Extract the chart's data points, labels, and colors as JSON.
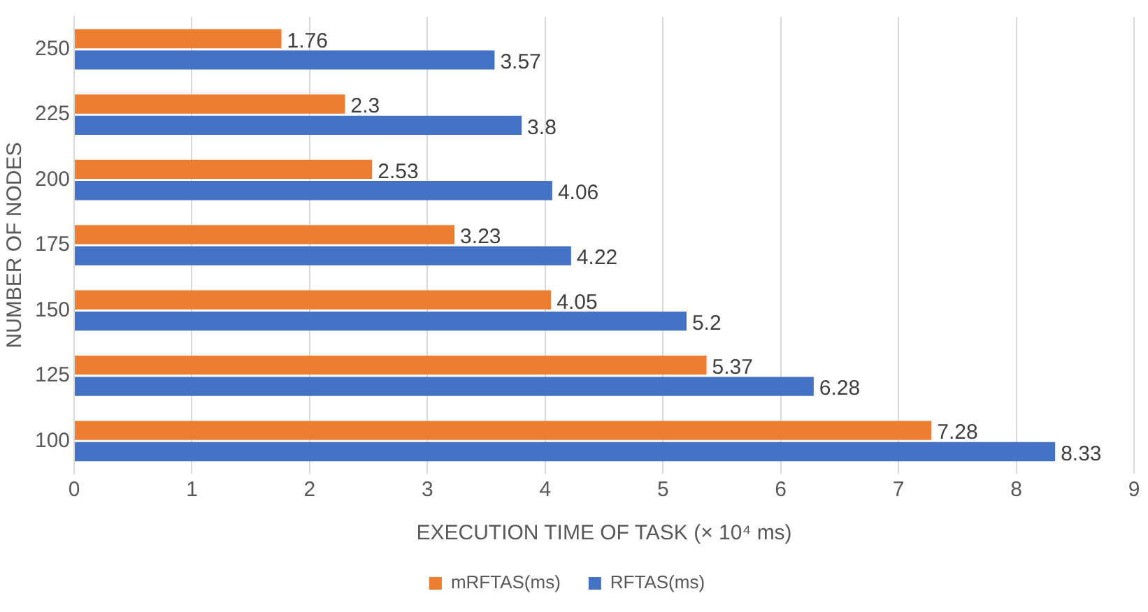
{
  "chart_data": {
    "type": "bar",
    "orientation": "horizontal",
    "categories": [
      "250",
      "225",
      "200",
      "175",
      "150",
      "125",
      "100"
    ],
    "series": [
      {
        "name": "mRFTAS(ms)",
        "color": "#ed7d31",
        "values": [
          1.76,
          2.3,
          2.53,
          3.23,
          4.05,
          5.37,
          7.28
        ]
      },
      {
        "name": "RFTAS(ms)",
        "color": "#4472c4",
        "values": [
          3.57,
          3.8,
          4.06,
          4.22,
          5.2,
          6.28,
          8.33
        ]
      }
    ],
    "xlim": [
      0,
      9
    ],
    "xticks": [
      0,
      1,
      2,
      3,
      4,
      5,
      6,
      7,
      8,
      9
    ],
    "grid": "x",
    "legend": "bottom",
    "data_labels": true,
    "xlabel": "EXECUTION TIME OF TASK (× 10⁴ ms)",
    "ylabel": "NUMBER OF NODES"
  }
}
